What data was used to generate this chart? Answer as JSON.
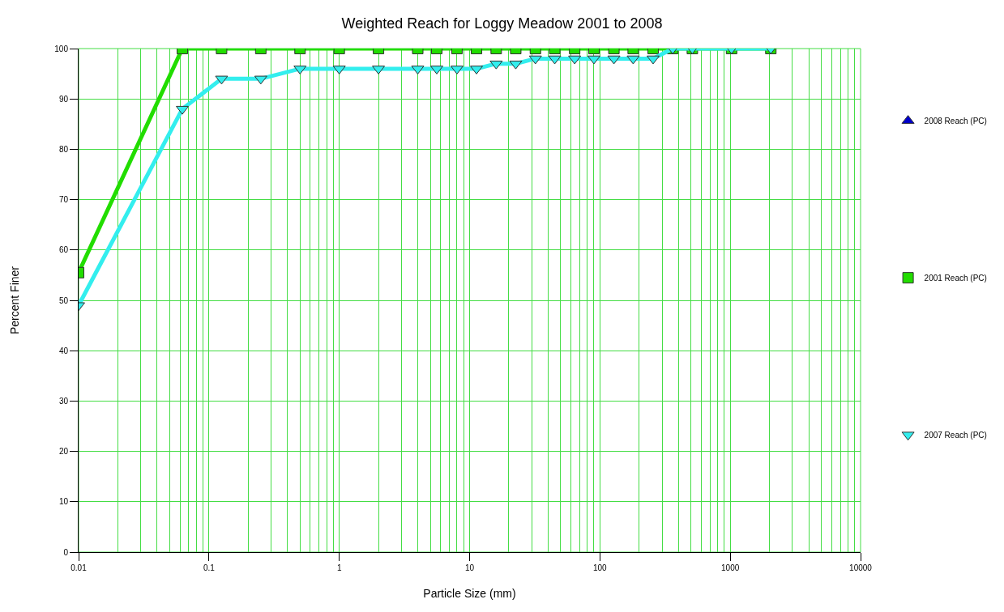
{
  "chart_data": {
    "type": "line",
    "title": "Weighted Reach for Loggy Meadow 2001 to 2008",
    "xlabel": "Particle Size (mm)",
    "ylabel": "Percent Finer",
    "log": "x",
    "grid": true,
    "legend": "right",
    "line_style": "solid",
    "xlim": [
      0.01,
      10000
    ],
    "xticks": [
      0.01,
      0.1,
      1,
      10,
      100,
      1000,
      10000
    ],
    "ylim": [
      0,
      100
    ],
    "yticks": [
      0,
      10,
      20,
      30,
      40,
      50,
      60,
      70,
      80,
      90,
      100
    ],
    "series": [
      {
        "name": "2008 Reach (PC)",
        "color": "#0000cc",
        "marker": "triangle-up"
      },
      {
        "name": "2001 Reach (PC)",
        "color": "#22dd00",
        "marker": "square",
        "x": [
          0.01,
          0.0625,
          0.125,
          0.25,
          0.5,
          1,
          2,
          4,
          5.6,
          8,
          11.3,
          16,
          22.6,
          32,
          45,
          64,
          90,
          128,
          180,
          256,
          362,
          512,
          1024,
          2048
        ],
        "values": [
          55.5,
          100,
          100,
          100,
          100,
          100,
          100,
          100,
          100,
          100,
          100,
          100,
          100,
          100,
          100,
          100,
          100,
          100,
          100,
          100,
          100,
          100,
          100,
          100
        ]
      },
      {
        "name": "2007 Reach (PC)",
        "color": "#33eeee",
        "marker": "triangle-down",
        "x": [
          0.01,
          0.0625,
          0.125,
          0.25,
          0.5,
          1,
          2,
          4,
          5.6,
          8,
          11.3,
          16,
          22.6,
          32,
          45,
          64,
          90,
          128,
          180,
          256,
          362,
          512,
          1024,
          2048
        ],
        "values": [
          49,
          88,
          94,
          94,
          96,
          96,
          96,
          96,
          96,
          96,
          96,
          97,
          97,
          98,
          98,
          98,
          98,
          98,
          98,
          98,
          100,
          100,
          100,
          100
        ]
      }
    ]
  }
}
